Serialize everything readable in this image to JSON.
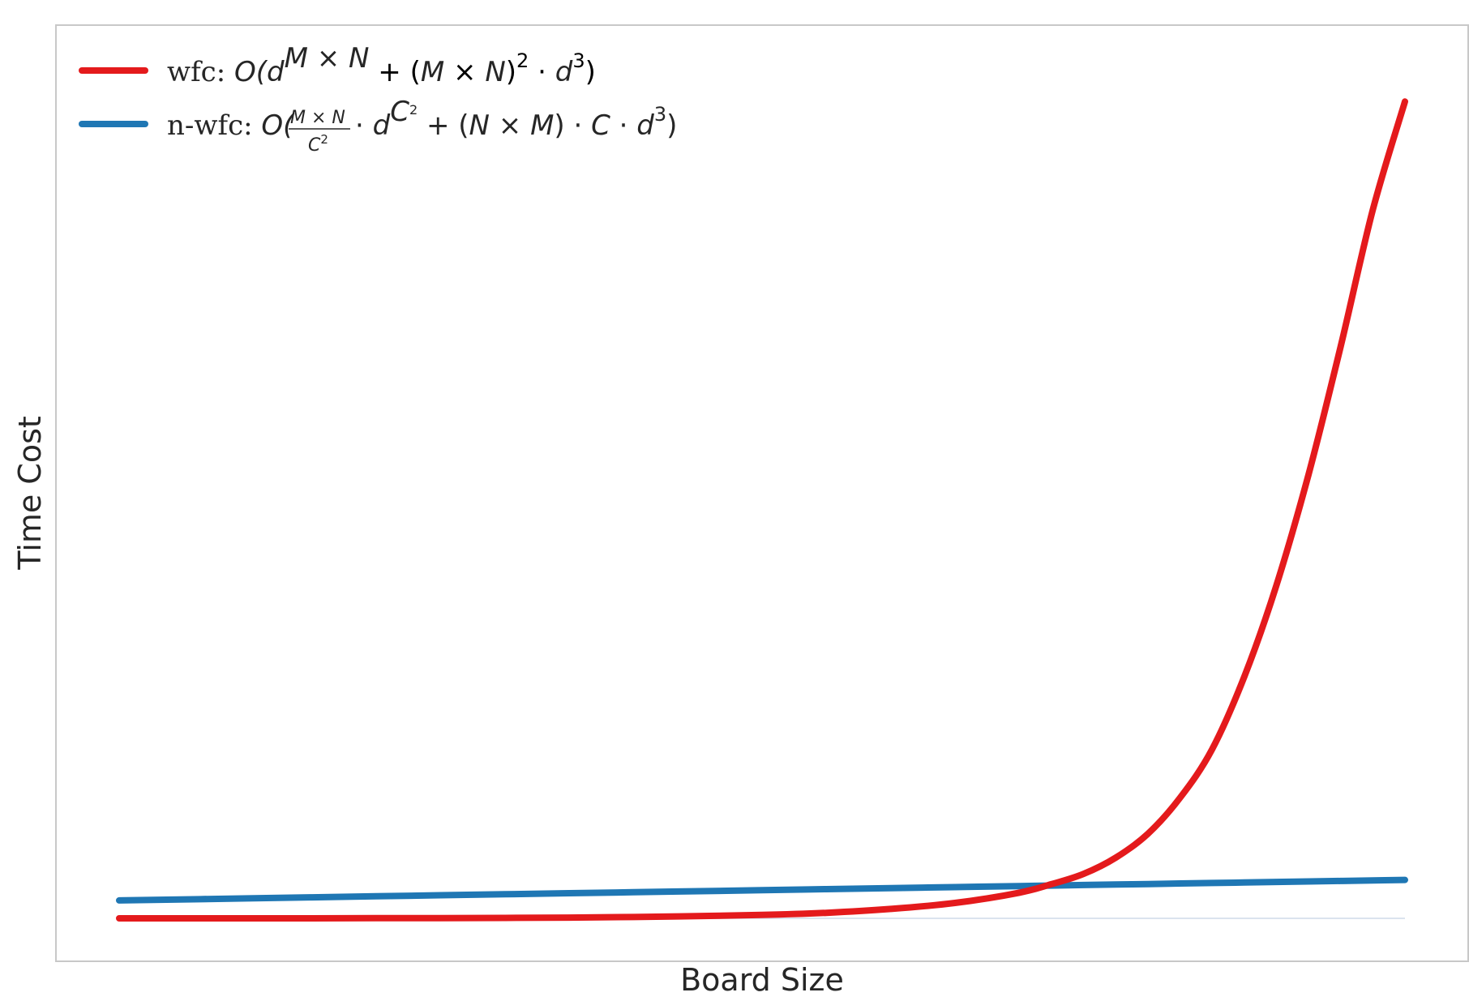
{
  "chart_data": {
    "type": "line",
    "title": "",
    "xlabel": "Board Size",
    "ylabel": "Time Cost",
    "x_ticks": [],
    "y_ticks": [],
    "grid": false,
    "legend_position": "top-left",
    "xlim": [
      0,
      1
    ],
    "ylim": [
      -0.05,
      1.0
    ],
    "x": [
      0.0,
      0.1,
      0.2,
      0.3,
      0.4,
      0.5,
      0.55,
      0.6,
      0.65,
      0.7,
      0.725,
      0.75,
      0.775,
      0.8,
      0.825,
      0.85,
      0.875,
      0.9,
      0.925,
      0.95,
      0.975,
      1.0
    ],
    "series": [
      {
        "name": "wfc",
        "prefix": "wfc: ",
        "formula": "O(d^{M×N} + (M×N)^2 · d^3)",
        "color": "#e41a1c",
        "values": [
          0.0,
          0.0,
          0.0002,
          0.0005,
          0.0015,
          0.004,
          0.0065,
          0.011,
          0.018,
          0.03,
          0.04,
          0.052,
          0.071,
          0.099,
          0.141,
          0.198,
          0.283,
          0.39,
          0.52,
          0.67,
          0.83,
          0.957
        ]
      },
      {
        "name": "n-wfc",
        "prefix": "n-wfc: ",
        "formula": "O((M×N)/C^2 · d^{C^2} + (N×M) · C · d^3)",
        "color": "#1f77b4",
        "values": [
          0.021,
          0.0234,
          0.0258,
          0.0282,
          0.0306,
          0.033,
          0.0342,
          0.0354,
          0.0366,
          0.0378,
          0.0384,
          0.039,
          0.0396,
          0.0402,
          0.0408,
          0.0414,
          0.042,
          0.0426,
          0.0432,
          0.0438,
          0.0444,
          0.045
        ]
      }
    ]
  },
  "legend": {
    "wfc_prefix": "wfc: ",
    "nwfc_prefix": "n-wfc: "
  },
  "colors": {
    "frame": "#c8c8c8",
    "baseline": "#dbe3ee"
  }
}
